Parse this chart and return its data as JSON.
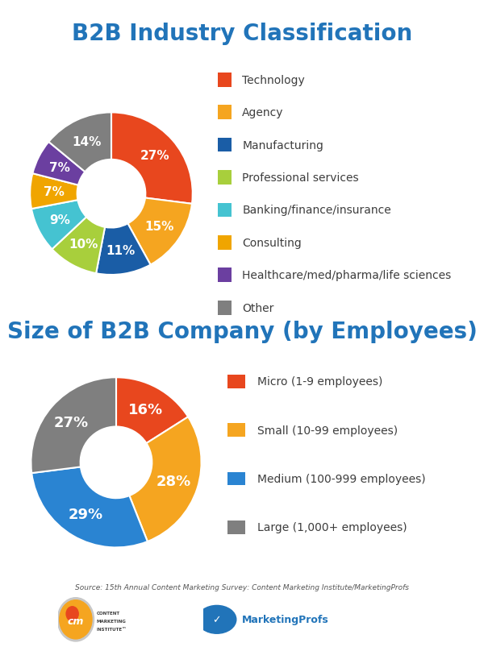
{
  "title1": "B2B Industry Classification",
  "title2": "Size of B2B Company (by Employees)",
  "title_color": "#2174b9",
  "background_color": "#ffffff",
  "chart1_labels": [
    "Technology",
    "Agency",
    "Manufacturing",
    "Professional services",
    "Banking/finance/insurance",
    "Consulting",
    "Healthcare/med/pharma/life sciences",
    "Other"
  ],
  "chart1_values": [
    27,
    15,
    11,
    10,
    9,
    7,
    7,
    14
  ],
  "chart1_colors": [
    "#e8471e",
    "#f5a520",
    "#1a5da6",
    "#a8cf3c",
    "#45c3d1",
    "#f0a500",
    "#6b3fa0",
    "#7f7f7f"
  ],
  "chart1_pcts": [
    "27%",
    "15%",
    "11%",
    "10%",
    "9%",
    "7%",
    "7%",
    "14%"
  ],
  "chart2_labels": [
    "Micro (1-9 employees)",
    "Small (10-99 employees)",
    "Medium (100-999 employees)",
    "Large (1,000+ employees)"
  ],
  "chart2_values": [
    16,
    28,
    29,
    27
  ],
  "chart2_colors": [
    "#e8471e",
    "#f5a520",
    "#2a84d2",
    "#7f7f7f"
  ],
  "chart2_pcts": [
    "16%",
    "28%",
    "29%",
    "27%"
  ],
  "source_text": "Source: 15th Annual Content Marketing Survey: Content Marketing Institute/MarketingProfs",
  "legend_text_color": "#3d3d3d",
  "pct_fontsize": 11,
  "legend_fontsize": 10,
  "title1_fontsize": 20,
  "title2_fontsize": 20
}
